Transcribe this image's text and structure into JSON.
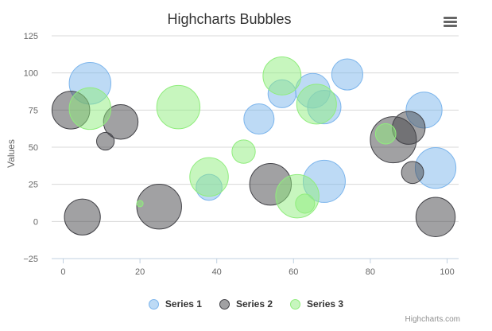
{
  "chart_data": {
    "type": "scatter",
    "subtype": "bubble",
    "title": "Highcharts Bubbles",
    "xlabel": "",
    "ylabel": "Values",
    "xlim": [
      -3,
      103
    ],
    "ylim": [
      -25,
      125
    ],
    "x_ticks": [
      "0",
      "20",
      "40",
      "60",
      "80",
      "100"
    ],
    "y_ticks": [
      "−25",
      "0",
      "25",
      "50",
      "75",
      "100",
      "125"
    ],
    "grid": "horizontal",
    "legend_position": "bottom-center",
    "series": [
      {
        "name": "Series 1",
        "color": "#7cb5ec",
        "points": [
          {
            "x": 7,
            "y": 93,
            "z": 98
          },
          {
            "x": 51,
            "y": 69,
            "z": 55
          },
          {
            "x": 57,
            "y": 86,
            "z": 48
          },
          {
            "x": 65,
            "y": 88,
            "z": 70
          },
          {
            "x": 68,
            "y": 77,
            "z": 66
          },
          {
            "x": 74,
            "y": 99,
            "z": 58
          },
          {
            "x": 94,
            "y": 75,
            "z": 75
          },
          {
            "x": 97,
            "y": 36,
            "z": 94
          },
          {
            "x": 38,
            "y": 23,
            "z": 42
          },
          {
            "x": 68,
            "y": 27,
            "z": 100
          }
        ]
      },
      {
        "name": "Series 2",
        "color": "#434348",
        "points": [
          {
            "x": 2,
            "y": 75,
            "z": 82
          },
          {
            "x": 11,
            "y": 54,
            "z": 22
          },
          {
            "x": 15,
            "y": 67,
            "z": 70
          },
          {
            "x": 5,
            "y": 3,
            "z": 75
          },
          {
            "x": 25,
            "y": 10,
            "z": 112
          },
          {
            "x": 54,
            "y": 25,
            "z": 98
          },
          {
            "x": 86,
            "y": 55,
            "z": 118
          },
          {
            "x": 90,
            "y": 63,
            "z": 64
          },
          {
            "x": 91,
            "y": 33,
            "z": 32
          },
          {
            "x": 97,
            "y": 3,
            "z": 88
          }
        ]
      },
      {
        "name": "Series 3",
        "color": "#90ed7d",
        "points": [
          {
            "x": 7,
            "y": 76,
            "z": 98
          },
          {
            "x": 30,
            "y": 77,
            "z": 105
          },
          {
            "x": 57,
            "y": 98,
            "z": 83
          },
          {
            "x": 47,
            "y": 47,
            "z": 35
          },
          {
            "x": 38,
            "y": 30,
            "z": 85
          },
          {
            "x": 20,
            "y": 12,
            "z": 5
          },
          {
            "x": 61,
            "y": 17,
            "z": 105
          },
          {
            "x": 63,
            "y": 12,
            "z": 25
          },
          {
            "x": 66,
            "y": 79,
            "z": 90
          },
          {
            "x": 84,
            "y": 59,
            "z": 28
          }
        ]
      }
    ]
  },
  "menu": {
    "icon": "hamburger-menu-icon"
  },
  "credits": "Highcharts.com"
}
